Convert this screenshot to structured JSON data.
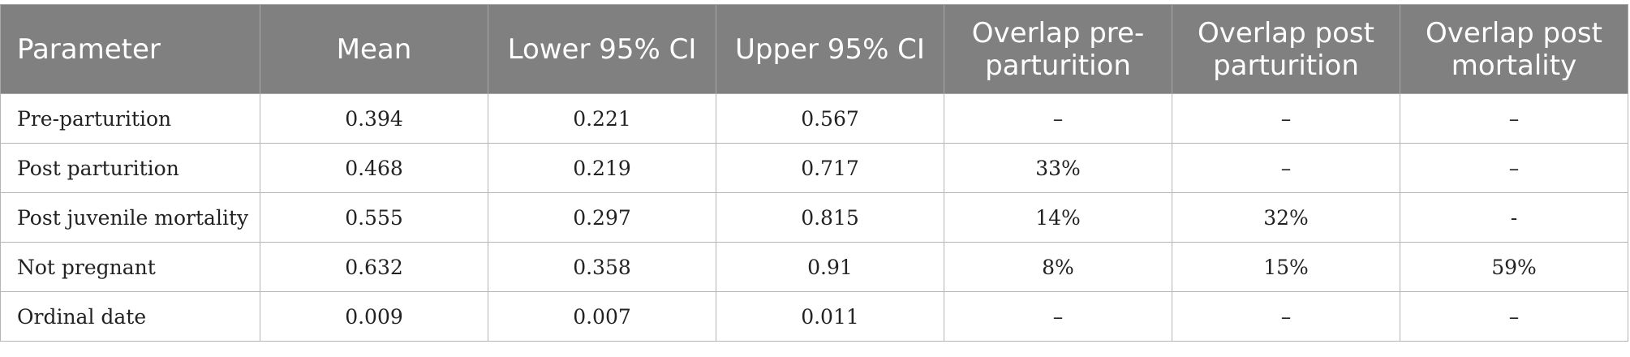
{
  "table": {
    "headers": [
      "Parameter",
      "Mean",
      "Lower 95% CI",
      "Upper 95% CI",
      "Overlap pre-parturition",
      "Overlap post parturition",
      "Overlap post mortality"
    ],
    "rows": [
      [
        "Pre-parturition",
        "0.394",
        "0.221",
        "0.567",
        "–",
        "–",
        "–"
      ],
      [
        "Post parturition",
        "0.468",
        "0.219",
        "0.717",
        "33%",
        "–",
        "–"
      ],
      [
        "Post juvenile mortality",
        "0.555",
        "0.297",
        "0.815",
        "14%",
        "32%",
        "-"
      ],
      [
        "Not pregnant",
        "0.632",
        "0.358",
        "0.91",
        "8%",
        "15%",
        "59%"
      ],
      [
        "Ordinal date",
        "0.009",
        "0.007",
        "0.011",
        "–",
        "–",
        "–"
      ]
    ]
  }
}
